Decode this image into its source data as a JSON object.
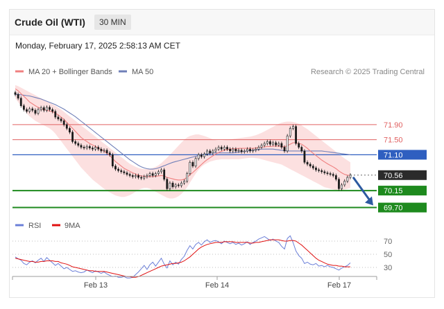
{
  "header": {
    "title": "Crude Oil (WTI)",
    "interval": "30 MIN",
    "date": "Monday, February 17, 2025 2:58:13 AM CET"
  },
  "legend": {
    "ma20_label": "MA 20 + Bollinger Bands",
    "ma50_label": "MA 50",
    "credit": "Research © 2025 Trading Central",
    "rsi_label": "RSI",
    "rsi9_label": "9MA"
  },
  "colors": {
    "candle": "#1a1a1a",
    "ma20": "#f08080",
    "band_fill": "#fbd3d3",
    "ma50": "#6f7fb8",
    "resistance": "#e06060",
    "pivot": "#2f5fc0",
    "support": "#1e8a1e",
    "current": "#2b2b2b",
    "arrow": "#2d5aa0",
    "rsi": "#6b7fd8",
    "rsi9": "#e01010"
  },
  "chart_data": [
    {
      "type": "candlestick",
      "x_ticks": [
        "Feb 13",
        "Feb 14",
        "Feb 17"
      ],
      "price_levels": [
        {
          "value": 71.9,
          "label": "71.90",
          "kind": "resistance"
        },
        {
          "value": 71.5,
          "label": "71.50",
          "kind": "resistance"
        },
        {
          "value": 71.1,
          "label": "71.10",
          "kind": "pivot"
        },
        {
          "value": 70.56,
          "label": "70.56",
          "kind": "current"
        },
        {
          "value": 70.15,
          "label": "70.15",
          "kind": "support"
        },
        {
          "value": 69.7,
          "label": "69.70",
          "kind": "support"
        }
      ],
      "arrow": {
        "from": 70.56,
        "to": 69.7,
        "direction": "down"
      },
      "close": [
        72.7,
        72.6,
        72.4,
        72.3,
        72.25,
        72.32,
        72.28,
        72.2,
        72.3,
        72.35,
        72.28,
        72.36,
        72.3,
        72.25,
        72.1,
        72.05,
        72.0,
        71.9,
        71.8,
        71.7,
        71.45,
        71.4,
        71.35,
        71.3,
        71.28,
        71.32,
        71.28,
        71.25,
        71.3,
        71.25,
        71.2,
        71.22,
        71.15,
        71.1,
        70.8,
        70.72,
        70.68,
        70.65,
        70.62,
        70.58,
        70.55,
        70.52,
        70.55,
        70.5,
        70.48,
        70.52,
        70.55,
        70.6,
        70.55,
        70.6,
        70.65,
        70.7,
        70.45,
        70.2,
        70.35,
        70.25,
        70.3,
        70.28,
        70.35,
        70.4,
        70.6,
        70.9,
        70.8,
        71.0,
        71.1,
        71.05,
        71.12,
        71.2,
        71.15,
        71.2,
        71.25,
        71.3,
        71.25,
        71.3,
        71.25,
        71.2,
        71.25,
        71.2,
        71.22,
        71.18,
        71.2,
        71.25,
        71.2,
        71.22,
        71.25,
        71.3,
        71.35,
        71.4,
        71.45,
        71.38,
        71.42,
        71.36,
        71.4,
        71.3,
        71.2,
        71.6,
        71.8,
        71.85,
        71.4,
        71.3,
        71.2,
        70.9,
        70.85,
        70.8,
        70.75,
        70.7,
        70.68,
        70.65,
        70.62,
        70.6,
        70.58,
        70.55,
        70.45,
        70.2,
        70.3,
        70.4,
        70.5,
        70.56
      ],
      "ma20": [
        72.85,
        72.8,
        72.72,
        72.65,
        72.58,
        72.5,
        72.45,
        72.4,
        72.36,
        72.32,
        72.3,
        72.28,
        72.26,
        72.24,
        72.2,
        72.16,
        72.1,
        72.04,
        71.96,
        71.88,
        71.8,
        71.72,
        71.64,
        71.56,
        71.5,
        71.45,
        71.4,
        71.36,
        71.32,
        71.28,
        71.24,
        71.2,
        71.14,
        71.08,
        71.0,
        70.92,
        70.86,
        70.8,
        70.74,
        70.7,
        70.66,
        70.62,
        70.59,
        70.56,
        70.54,
        70.53,
        70.52,
        70.52,
        70.52,
        70.53,
        70.54,
        70.55,
        70.54,
        70.5,
        70.48,
        70.46,
        70.44,
        70.43,
        70.43,
        70.45,
        70.5,
        70.57,
        70.63,
        70.7,
        70.77,
        70.84,
        70.91,
        70.97,
        71.02,
        71.07,
        71.12,
        71.16,
        71.19,
        71.22,
        71.24,
        71.25,
        71.26,
        71.26,
        71.27,
        71.27,
        71.27,
        71.27,
        71.27,
        71.27,
        71.28,
        71.29,
        71.3,
        71.31,
        71.32,
        71.32,
        71.33,
        71.33,
        71.33,
        71.32,
        71.31,
        71.34,
        71.38,
        71.42,
        71.42,
        71.4,
        71.38,
        71.33,
        71.27,
        71.2,
        71.14,
        71.08,
        71.02,
        70.96,
        70.91,
        70.86,
        70.82,
        70.78,
        70.73,
        70.67,
        70.62,
        70.58,
        70.56,
        70.55
      ],
      "bb_upper": [
        72.95,
        72.92,
        72.88,
        72.84,
        72.8,
        72.76,
        72.72,
        72.68,
        72.64,
        72.6,
        72.56,
        72.52,
        72.48,
        72.44,
        72.4,
        72.35,
        72.3,
        72.24,
        72.18,
        72.12,
        72.06,
        72.0,
        71.94,
        71.88,
        71.82,
        71.76,
        71.7,
        71.64,
        71.58,
        71.52,
        71.46,
        71.4,
        71.34,
        71.28,
        71.22,
        71.16,
        71.1,
        71.04,
        70.98,
        70.92,
        70.86,
        70.82,
        70.78,
        70.75,
        70.73,
        70.72,
        70.72,
        70.73,
        70.75,
        70.78,
        70.82,
        70.88,
        70.95,
        71.02,
        71.1,
        71.18,
        71.26,
        71.34,
        71.42,
        71.5,
        71.56,
        71.6,
        71.62,
        71.64,
        71.64,
        71.62,
        71.6,
        71.57,
        71.54,
        71.51,
        71.49,
        71.48,
        71.48,
        71.49,
        71.5,
        71.51,
        71.52,
        71.53,
        71.54,
        71.55,
        71.56,
        71.57,
        71.58,
        71.6,
        71.62,
        71.65,
        71.68,
        71.72,
        71.76,
        71.8,
        71.84,
        71.88,
        71.92,
        71.95,
        71.97,
        71.98,
        71.98,
        71.97,
        71.95,
        71.92,
        71.88,
        71.83,
        71.78,
        71.72,
        71.66,
        71.6,
        71.54,
        71.48,
        71.42,
        71.36,
        71.3,
        71.24,
        71.18,
        71.12,
        71.06,
        71.0,
        70.95,
        70.9
      ],
      "bb_lower": [
        72.6,
        72.5,
        72.4,
        72.3,
        72.2,
        72.12,
        72.06,
        72.0,
        71.96,
        71.92,
        71.88,
        71.84,
        71.8,
        71.74,
        71.66,
        71.56,
        71.46,
        71.36,
        71.26,
        71.16,
        71.06,
        70.96,
        70.86,
        70.76,
        70.68,
        70.6,
        70.52,
        70.44,
        70.38,
        70.32,
        70.26,
        70.2,
        70.15,
        70.1,
        70.06,
        70.02,
        70.0,
        69.98,
        69.98,
        70.0,
        70.03,
        70.07,
        70.12,
        70.17,
        70.2,
        70.22,
        70.22,
        70.2,
        70.16,
        70.12,
        70.08,
        70.04,
        70.0,
        69.96,
        69.94,
        69.94,
        69.96,
        70.0,
        70.06,
        70.14,
        70.24,
        70.36,
        70.48,
        70.6,
        70.7,
        70.78,
        70.84,
        70.88,
        70.92,
        70.94,
        70.96,
        70.97,
        70.98,
        70.98,
        70.98,
        70.98,
        70.98,
        70.98,
        70.98,
        70.99,
        71.0,
        71.01,
        71.02,
        71.02,
        71.01,
        71.0,
        70.98,
        70.96,
        70.94,
        70.92,
        70.9,
        70.88,
        70.86,
        70.84,
        70.8,
        70.76,
        70.72,
        70.68,
        70.64,
        70.6,
        70.56,
        70.52,
        70.48,
        70.44,
        70.4,
        70.36,
        70.32,
        70.28,
        70.24,
        70.22,
        70.2,
        70.18,
        70.16,
        70.15,
        70.16,
        70.18,
        70.2,
        70.22
      ],
      "ma50": [
        72.7,
        72.7,
        72.69,
        72.68,
        72.67,
        72.66,
        72.64,
        72.62,
        72.6,
        72.58,
        72.55,
        72.52,
        72.49,
        72.46,
        72.43,
        72.39,
        72.35,
        72.31,
        72.26,
        72.21,
        72.16,
        72.11,
        72.05,
        71.99,
        71.93,
        71.87,
        71.81,
        71.75,
        71.69,
        71.63,
        71.57,
        71.51,
        71.45,
        71.39,
        71.33,
        71.27,
        71.21,
        71.15,
        71.09,
        71.03,
        70.97,
        70.92,
        70.87,
        70.82,
        70.78,
        70.75,
        70.73,
        70.72,
        70.72,
        70.73,
        70.75,
        70.78,
        70.81,
        70.84,
        70.87,
        70.9,
        70.92,
        70.94,
        70.96,
        70.98,
        71.0,
        71.02,
        71.04,
        71.06,
        71.08,
        71.1,
        71.12,
        71.13,
        71.14,
        71.15,
        71.15,
        71.15,
        71.15,
        71.15,
        71.15,
        71.15,
        71.15,
        71.16,
        71.17,
        71.18,
        71.19,
        71.2,
        71.21,
        71.22,
        71.23,
        71.24,
        71.25,
        71.25,
        71.25,
        71.25,
        71.25,
        71.24,
        71.23,
        71.22,
        71.21,
        71.2,
        71.2,
        71.2,
        71.2,
        71.2,
        71.2,
        71.2,
        71.2,
        71.2,
        71.2,
        71.2,
        71.2,
        71.2,
        71.19,
        71.18,
        71.17,
        71.16,
        71.15,
        71.14,
        71.13,
        71.12,
        71.11,
        71.1
      ]
    },
    {
      "type": "line",
      "y_ticks": [
        70,
        50,
        30
      ],
      "series": [
        {
          "name": "RSI",
          "values": [
            46,
            43,
            41,
            36,
            34,
            38,
            40,
            37,
            41,
            44,
            39,
            45,
            41,
            37,
            33,
            36,
            32,
            28,
            30,
            27,
            24,
            25,
            23,
            22,
            23,
            26,
            24,
            22,
            25,
            23,
            21,
            23,
            20,
            18,
            16,
            17,
            15,
            15,
            16,
            14,
            14,
            15,
            19,
            23,
            28,
            33,
            27,
            34,
            38,
            32,
            38,
            44,
            35,
            29,
            40,
            34,
            38,
            35,
            42,
            47,
            56,
            63,
            58,
            65,
            68,
            64,
            69,
            72,
            68,
            70,
            71,
            69,
            66,
            70,
            68,
            66,
            68,
            65,
            67,
            64,
            66,
            69,
            65,
            68,
            70,
            73,
            75,
            77,
            74,
            71,
            73,
            70,
            68,
            62,
            58,
            74,
            78,
            68,
            55,
            48,
            44,
            36,
            38,
            35,
            34,
            36,
            32,
            33,
            31,
            33,
            31,
            30,
            28,
            26,
            29,
            31,
            33,
            37
          ]
        },
        {
          "name": "9MA",
          "values": [
            44,
            43,
            42,
            41,
            40,
            39,
            39,
            38,
            38,
            39,
            39,
            40,
            40,
            40,
            39,
            39,
            37,
            36,
            35,
            33,
            31,
            30,
            29,
            28,
            27,
            26,
            25,
            25,
            24,
            24,
            24,
            24,
            23,
            22,
            21,
            20,
            19,
            18,
            17,
            16,
            16,
            15,
            15,
            16,
            18,
            20,
            22,
            24,
            26,
            28,
            30,
            32,
            33,
            34,
            35,
            36,
            36,
            37,
            38,
            40,
            43,
            46,
            50,
            54,
            58,
            61,
            63,
            65,
            66,
            67,
            68,
            68,
            68,
            69,
            69,
            69,
            69,
            68,
            68,
            68,
            68,
            68,
            67,
            67,
            68,
            68,
            69,
            70,
            71,
            72,
            72,
            72,
            72,
            71,
            70,
            70,
            71,
            71,
            70,
            67,
            64,
            60,
            56,
            52,
            48,
            44,
            41,
            39,
            37,
            35,
            34,
            33,
            33,
            32,
            32,
            31,
            31,
            31
          ]
        }
      ]
    }
  ]
}
